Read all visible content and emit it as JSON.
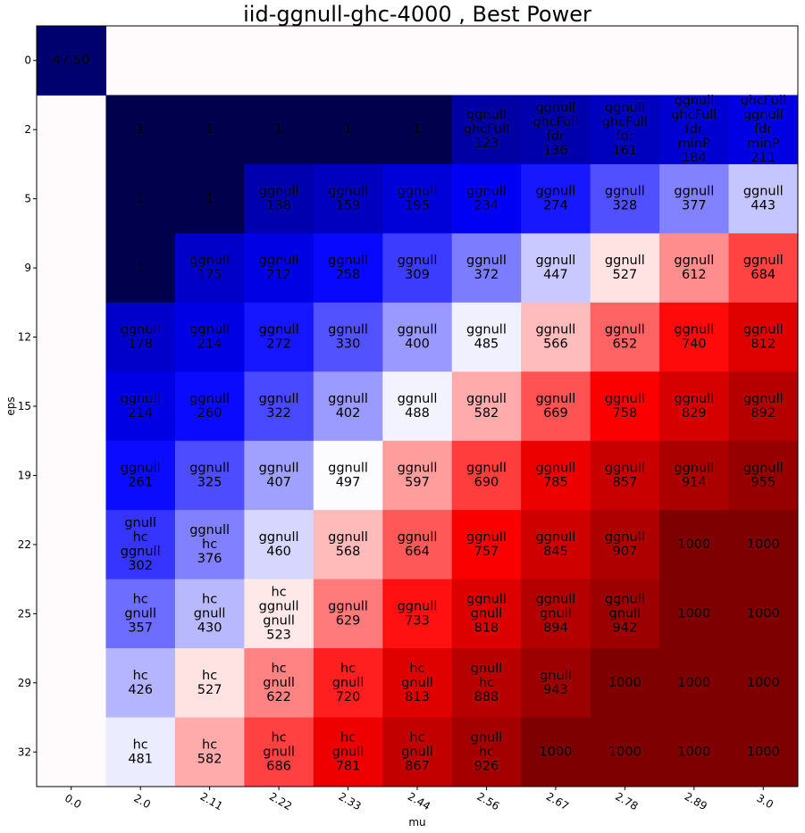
{
  "chart_data": {
    "type": "heatmap",
    "title": "iid-ggnull-ghc-4000 , Best Power",
    "xlabel": "mu",
    "ylabel": "eps",
    "x": [
      "0.0",
      "2.0",
      "2.11",
      "2.22",
      "2.33",
      "2.44",
      "2.56",
      "2.67",
      "2.78",
      "2.89",
      "3.0"
    ],
    "y": [
      "0",
      "2",
      "5",
      "9",
      "12",
      "15",
      "19",
      "22",
      "25",
      "29",
      "32"
    ],
    "vmin": 0,
    "vmax": 1000,
    "colormap": "seismic",
    "grid": false,
    "cells": [
      [
        {
          "v": 47.5,
          "t": [
            "47.50"
          ]
        },
        null,
        null,
        null,
        null,
        null,
        null,
        null,
        null,
        null,
        null
      ],
      [
        null,
        {
          "v": 0,
          "t": [
            "1"
          ]
        },
        {
          "v": 0,
          "t": [
            "1"
          ]
        },
        {
          "v": 0,
          "t": [
            "1"
          ]
        },
        {
          "v": 0,
          "t": [
            "1"
          ]
        },
        {
          "v": 0,
          "t": [
            "1"
          ]
        },
        {
          "v": 123,
          "t": [
            "ggnull",
            "ghcFull",
            "123"
          ]
        },
        {
          "v": 136,
          "t": [
            "ggnull",
            "ghcFull",
            "fdr",
            "136"
          ]
        },
        {
          "v": 161,
          "t": [
            "ggnull",
            "ghcFull",
            "fdr",
            "161"
          ]
        },
        {
          "v": 184,
          "t": [
            "ggnull",
            "ghcFull",
            "fdr",
            "minP",
            "184"
          ]
        },
        {
          "v": 211,
          "t": [
            "ghcFull",
            "ggnull",
            "fdr",
            "minP",
            "211"
          ]
        }
      ],
      [
        null,
        {
          "v": 0,
          "t": [
            "1"
          ]
        },
        {
          "v": 0,
          "t": [
            "1"
          ]
        },
        {
          "v": 138,
          "t": [
            "ggnull",
            "138"
          ]
        },
        {
          "v": 159,
          "t": [
            "ggnull",
            "159"
          ]
        },
        {
          "v": 195,
          "t": [
            "ggnull",
            "195"
          ]
        },
        {
          "v": 234,
          "t": [
            "ggnull",
            "234"
          ]
        },
        {
          "v": 274,
          "t": [
            "ggnull",
            "274"
          ]
        },
        {
          "v": 328,
          "t": [
            "ggnull",
            "328"
          ]
        },
        {
          "v": 377,
          "t": [
            "ggnull",
            "377"
          ]
        },
        {
          "v": 443,
          "t": [
            "ggnull",
            "443"
          ]
        }
      ],
      [
        null,
        {
          "v": 0,
          "t": [
            "1"
          ]
        },
        {
          "v": 175,
          "t": [
            "ggnull",
            "175"
          ]
        },
        {
          "v": 212,
          "t": [
            "ggnull",
            "212"
          ]
        },
        {
          "v": 258,
          "t": [
            "ggnull",
            "258"
          ]
        },
        {
          "v": 309,
          "t": [
            "ggnull",
            "309"
          ]
        },
        {
          "v": 372,
          "t": [
            "ggnull",
            "372"
          ]
        },
        {
          "v": 447,
          "t": [
            "ggnull",
            "447"
          ]
        },
        {
          "v": 527,
          "t": [
            "ggnull",
            "527"
          ]
        },
        {
          "v": 612,
          "t": [
            "ggnull",
            "612"
          ]
        },
        {
          "v": 684,
          "t": [
            "ggnull",
            "684"
          ]
        }
      ],
      [
        null,
        {
          "v": 178,
          "t": [
            "ggnull",
            "178"
          ]
        },
        {
          "v": 214,
          "t": [
            "ggnull",
            "214"
          ]
        },
        {
          "v": 272,
          "t": [
            "ggnull",
            "272"
          ]
        },
        {
          "v": 330,
          "t": [
            "ggnull",
            "330"
          ]
        },
        {
          "v": 400,
          "t": [
            "ggnull",
            "400"
          ]
        },
        {
          "v": 485,
          "t": [
            "ggnull",
            "485"
          ]
        },
        {
          "v": 566,
          "t": [
            "ggnull",
            "566"
          ]
        },
        {
          "v": 652,
          "t": [
            "ggnull",
            "652"
          ]
        },
        {
          "v": 740,
          "t": [
            "ggnull",
            "740"
          ]
        },
        {
          "v": 812,
          "t": [
            "ggnull",
            "812"
          ]
        }
      ],
      [
        null,
        {
          "v": 214,
          "t": [
            "ggnull",
            "214"
          ]
        },
        {
          "v": 260,
          "t": [
            "ggnull",
            "260"
          ]
        },
        {
          "v": 322,
          "t": [
            "ggnull",
            "322"
          ]
        },
        {
          "v": 402,
          "t": [
            "ggnull",
            "402"
          ]
        },
        {
          "v": 488,
          "t": [
            "ggnull",
            "488"
          ]
        },
        {
          "v": 582,
          "t": [
            "ggnull",
            "582"
          ]
        },
        {
          "v": 669,
          "t": [
            "ggnull",
            "669"
          ]
        },
        {
          "v": 758,
          "t": [
            "ggnull",
            "758"
          ]
        },
        {
          "v": 829,
          "t": [
            "ggnull",
            "829"
          ]
        },
        {
          "v": 892,
          "t": [
            "ggnull",
            "892"
          ]
        }
      ],
      [
        null,
        {
          "v": 261,
          "t": [
            "ggnull",
            "261"
          ]
        },
        {
          "v": 325,
          "t": [
            "ggnull",
            "325"
          ]
        },
        {
          "v": 407,
          "t": [
            "ggnull",
            "407"
          ]
        },
        {
          "v": 497,
          "t": [
            "ggnull",
            "497"
          ]
        },
        {
          "v": 597,
          "t": [
            "ggnull",
            "597"
          ]
        },
        {
          "v": 690,
          "t": [
            "ggnull",
            "690"
          ]
        },
        {
          "v": 785,
          "t": [
            "ggnull",
            "785"
          ]
        },
        {
          "v": 857,
          "t": [
            "ggnull",
            "857"
          ]
        },
        {
          "v": 914,
          "t": [
            "ggnull",
            "914"
          ]
        },
        {
          "v": 955,
          "t": [
            "ggnull",
            "955"
          ]
        }
      ],
      [
        null,
        {
          "v": 302,
          "t": [
            "gnull",
            "hc",
            "ggnull",
            "302"
          ]
        },
        {
          "v": 376,
          "t": [
            "ggnull",
            "hc",
            "376"
          ]
        },
        {
          "v": 460,
          "t": [
            "ggnull",
            "460"
          ]
        },
        {
          "v": 568,
          "t": [
            "ggnull",
            "568"
          ]
        },
        {
          "v": 664,
          "t": [
            "ggnull",
            "664"
          ]
        },
        {
          "v": 757,
          "t": [
            "ggnull",
            "757"
          ]
        },
        {
          "v": 845,
          "t": [
            "ggnull",
            "845"
          ]
        },
        {
          "v": 907,
          "t": [
            "ggnull",
            "907"
          ]
        },
        {
          "v": 1000,
          "t": [
            "1000"
          ]
        },
        {
          "v": 1000,
          "t": [
            "1000"
          ]
        }
      ],
      [
        null,
        {
          "v": 357,
          "t": [
            "hc",
            "gnull",
            "357"
          ]
        },
        {
          "v": 430,
          "t": [
            "hc",
            "gnull",
            "430"
          ]
        },
        {
          "v": 523,
          "t": [
            "hc",
            "ggnull",
            "gnull",
            "523"
          ]
        },
        {
          "v": 629,
          "t": [
            "ggnull",
            "629"
          ]
        },
        {
          "v": 733,
          "t": [
            "ggnull",
            "733"
          ]
        },
        {
          "v": 818,
          "t": [
            "ggnull",
            "gnull",
            "818"
          ]
        },
        {
          "v": 894,
          "t": [
            "ggnull",
            "gnull",
            "894"
          ]
        },
        {
          "v": 942,
          "t": [
            "ggnull",
            "gnull",
            "942"
          ]
        },
        {
          "v": 1000,
          "t": [
            "1000"
          ]
        },
        {
          "v": 1000,
          "t": [
            "1000"
          ]
        }
      ],
      [
        null,
        {
          "v": 426,
          "t": [
            "hc",
            "426"
          ]
        },
        {
          "v": 527,
          "t": [
            "hc",
            "527"
          ]
        },
        {
          "v": 622,
          "t": [
            "hc",
            "gnull",
            "622"
          ]
        },
        {
          "v": 720,
          "t": [
            "hc",
            "gnull",
            "720"
          ]
        },
        {
          "v": 813,
          "t": [
            "hc",
            "gnull",
            "813"
          ]
        },
        {
          "v": 888,
          "t": [
            "gnull",
            "hc",
            "888"
          ]
        },
        {
          "v": 943,
          "t": [
            "gnull",
            "943"
          ]
        },
        {
          "v": 1000,
          "t": [
            "1000"
          ]
        },
        {
          "v": 1000,
          "t": [
            "1000"
          ]
        },
        {
          "v": 1000,
          "t": [
            "1000"
          ]
        }
      ],
      [
        null,
        {
          "v": 481,
          "t": [
            "hc",
            "481"
          ]
        },
        {
          "v": 582,
          "t": [
            "hc",
            "582"
          ]
        },
        {
          "v": 686,
          "t": [
            "hc",
            "gnull",
            "686"
          ]
        },
        {
          "v": 781,
          "t": [
            "hc",
            "gnull",
            "781"
          ]
        },
        {
          "v": 867,
          "t": [
            "hc",
            "gnull",
            "867"
          ]
        },
        {
          "v": 926,
          "t": [
            "gnull",
            "hc",
            "926"
          ]
        },
        {
          "v": 1000,
          "t": [
            "1000"
          ]
        },
        {
          "v": 1000,
          "t": [
            "1000"
          ]
        },
        {
          "v": 1000,
          "t": [
            "1000"
          ]
        },
        {
          "v": 1000,
          "t": [
            "1000"
          ]
        }
      ]
    ]
  }
}
